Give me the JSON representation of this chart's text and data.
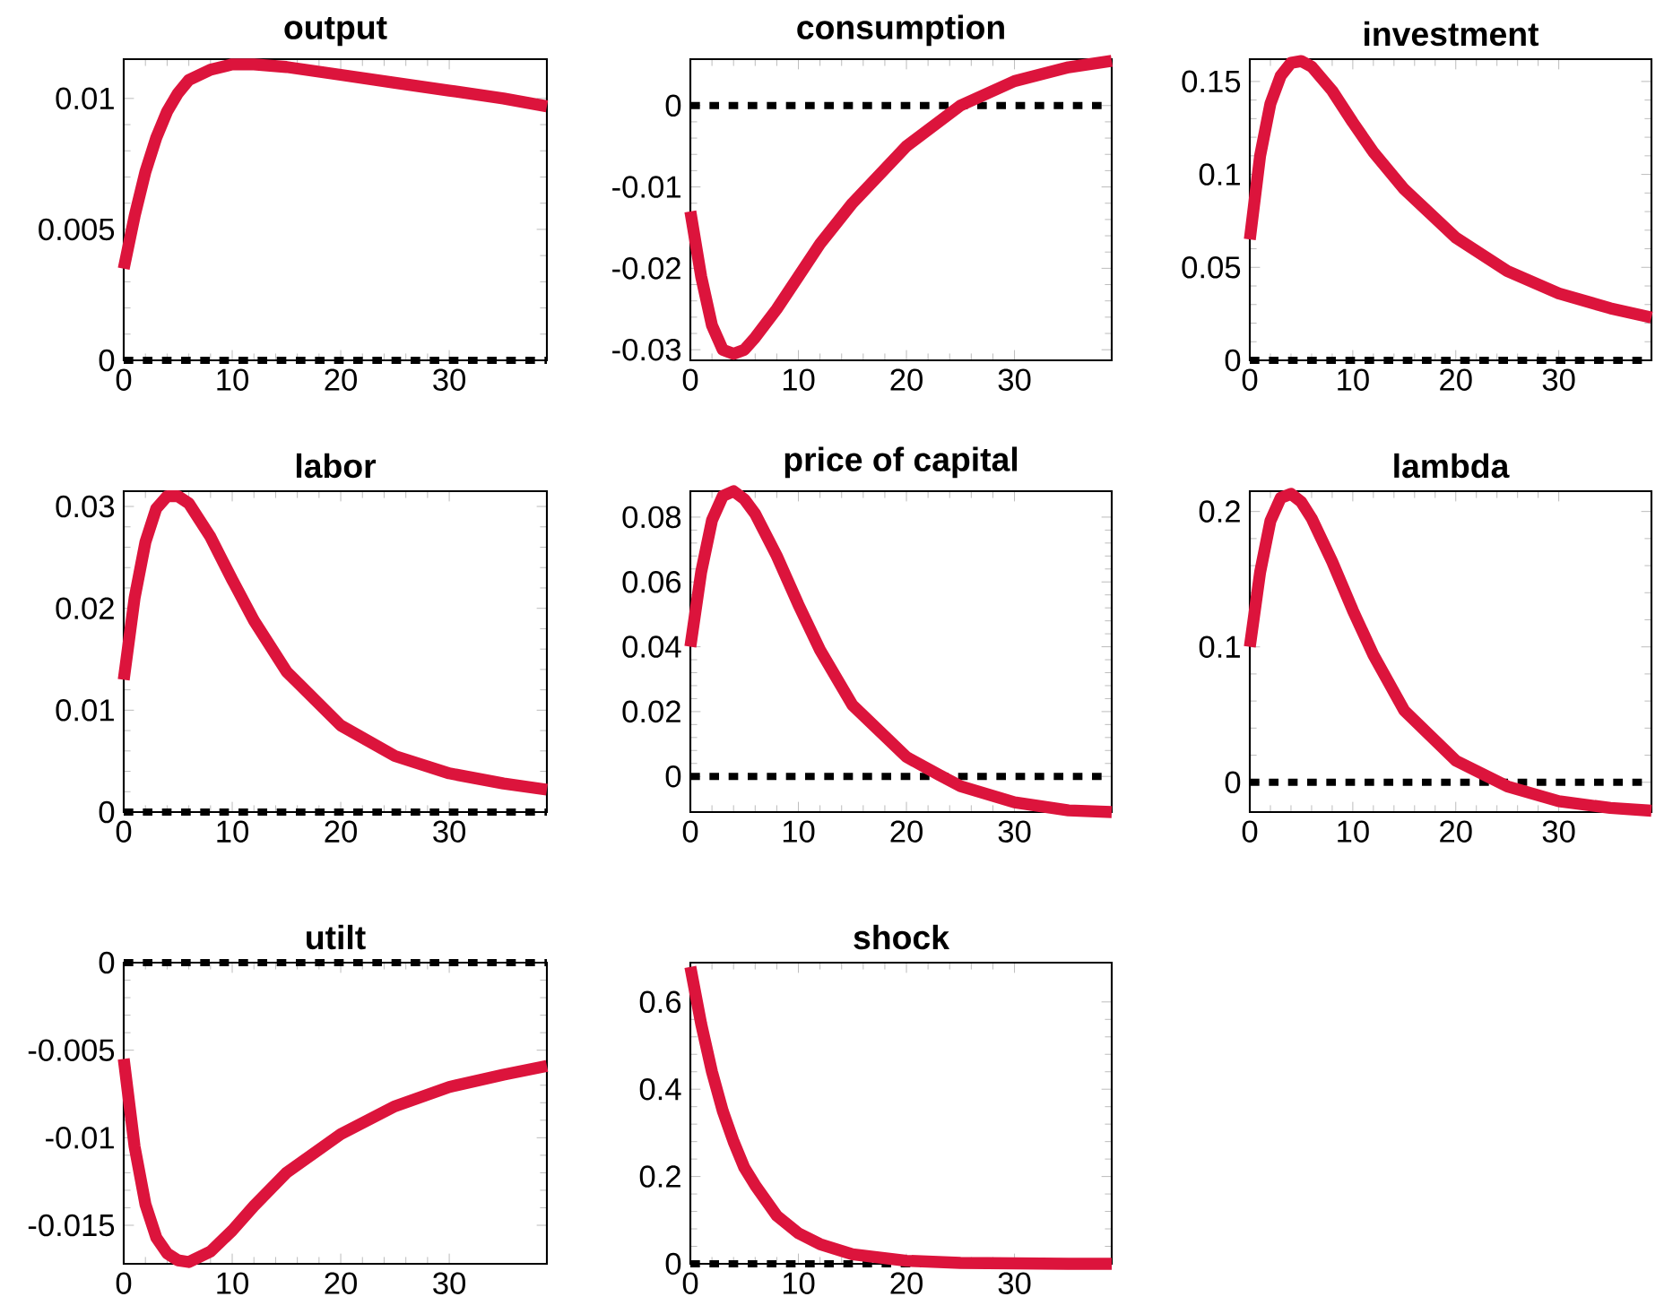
{
  "chart_data": [
    {
      "type": "line",
      "title": "output",
      "x": [
        0,
        1,
        2,
        3,
        4,
        5,
        6,
        8,
        10,
        12,
        15,
        20,
        25,
        30,
        35,
        39
      ],
      "values": [
        0.0035,
        0.0055,
        0.0072,
        0.0085,
        0.0095,
        0.0102,
        0.0107,
        0.0111,
        0.0113,
        0.0113,
        0.0112,
        0.0109,
        0.0106,
        0.0103,
        0.01,
        0.0097
      ],
      "color": "#dc143c",
      "line_style": "solid",
      "xlim": [
        0,
        39
      ],
      "xticks": [
        0,
        10,
        20,
        30
      ],
      "ylim": [
        0,
        0.0115
      ],
      "yticks": [
        0,
        0.005,
        0.01
      ],
      "ref_lines": [
        {
          "axis": "y",
          "value": 0,
          "color": "#000000",
          "line_style": "dotted"
        }
      ]
    },
    {
      "type": "line",
      "title": "consumption",
      "x": [
        0,
        1,
        2,
        3,
        4,
        5,
        6,
        8,
        10,
        12,
        15,
        20,
        25,
        30,
        35,
        39
      ],
      "values": [
        -0.013,
        -0.021,
        -0.027,
        -0.03,
        -0.0305,
        -0.03,
        -0.0285,
        -0.025,
        -0.021,
        -0.017,
        -0.012,
        -0.005,
        0.0,
        0.003,
        0.0047,
        0.0055
      ],
      "color": "#dc143c",
      "line_style": "solid",
      "xlim": [
        0,
        39
      ],
      "xticks": [
        0,
        10,
        20,
        30
      ],
      "ylim": [
        -0.0313,
        0.0057
      ],
      "yticks": [
        -0.03,
        -0.02,
        -0.01,
        0
      ],
      "ref_lines": [
        {
          "axis": "y",
          "value": 0,
          "color": "#000000",
          "line_style": "dotted"
        }
      ]
    },
    {
      "type": "line",
      "title": "investment",
      "x": [
        0,
        1,
        2,
        3,
        4,
        5,
        6,
        8,
        10,
        12,
        15,
        20,
        25,
        30,
        35,
        39
      ],
      "values": [
        0.065,
        0.11,
        0.138,
        0.153,
        0.16,
        0.161,
        0.158,
        0.145,
        0.128,
        0.112,
        0.092,
        0.066,
        0.048,
        0.036,
        0.028,
        0.023
      ],
      "color": "#dc143c",
      "line_style": "solid",
      "xlim": [
        0,
        39
      ],
      "xticks": [
        0,
        10,
        20,
        30
      ],
      "ylim": [
        0,
        0.162
      ],
      "yticks": [
        0,
        0.05,
        0.1,
        0.15
      ],
      "ref_lines": [
        {
          "axis": "y",
          "value": 0,
          "color": "#000000",
          "line_style": "dotted"
        }
      ]
    },
    {
      "type": "line",
      "title": "labor",
      "x": [
        0,
        1,
        2,
        3,
        4,
        5,
        6,
        8,
        10,
        12,
        15,
        20,
        25,
        30,
        35,
        39
      ],
      "values": [
        0.013,
        0.021,
        0.0265,
        0.0298,
        0.031,
        0.031,
        0.0303,
        0.027,
        0.0228,
        0.0188,
        0.0138,
        0.0085,
        0.0055,
        0.0038,
        0.0028,
        0.0022
      ],
      "color": "#dc143c",
      "line_style": "solid",
      "xlim": [
        0,
        39
      ],
      "xticks": [
        0,
        10,
        20,
        30
      ],
      "ylim": [
        0,
        0.0315
      ],
      "yticks": [
        0,
        0.01,
        0.02,
        0.03
      ],
      "ref_lines": [
        {
          "axis": "y",
          "value": 0,
          "color": "#000000",
          "line_style": "dotted"
        }
      ]
    },
    {
      "type": "line",
      "title": "price of capital",
      "x": [
        0,
        1,
        2,
        3,
        4,
        5,
        6,
        8,
        10,
        12,
        15,
        20,
        23,
        25,
        30,
        35,
        39
      ],
      "values": [
        0.04,
        0.063,
        0.079,
        0.0865,
        0.088,
        0.0855,
        0.081,
        0.068,
        0.053,
        0.039,
        0.022,
        0.006,
        0.0005,
        -0.003,
        -0.008,
        -0.0105,
        -0.011
      ],
      "color": "#dc143c",
      "line_style": "solid",
      "xlim": [
        0,
        39
      ],
      "xticks": [
        0,
        10,
        20,
        30
      ],
      "ylim": [
        -0.011,
        0.088
      ],
      "yticks": [
        0,
        0.02,
        0.04,
        0.06,
        0.08
      ],
      "ref_lines": [
        {
          "axis": "y",
          "value": 0,
          "color": "#000000",
          "line_style": "dotted"
        }
      ]
    },
    {
      "type": "line",
      "title": "lambda",
      "x": [
        0,
        1,
        2,
        3,
        4,
        5,
        6,
        8,
        10,
        12,
        15,
        20,
        25,
        30,
        35,
        39
      ],
      "values": [
        0.1,
        0.155,
        0.193,
        0.21,
        0.213,
        0.207,
        0.195,
        0.163,
        0.127,
        0.094,
        0.053,
        0.016,
        -0.003,
        -0.014,
        -0.019,
        -0.021
      ],
      "color": "#dc143c",
      "line_style": "solid",
      "xlim": [
        0,
        39
      ],
      "xticks": [
        0,
        10,
        20,
        30
      ],
      "ylim": [
        -0.022,
        0.215
      ],
      "yticks": [
        0,
        0.1,
        0.2
      ],
      "ref_lines": [
        {
          "axis": "y",
          "value": 0,
          "color": "#000000",
          "line_style": "dotted"
        }
      ]
    },
    {
      "type": "line",
      "title": "utilt",
      "x": [
        0,
        1,
        2,
        3,
        4,
        5,
        6,
        8,
        10,
        12,
        15,
        20,
        25,
        30,
        35,
        39
      ],
      "values": [
        -0.0055,
        -0.0105,
        -0.0138,
        -0.0157,
        -0.0166,
        -0.017,
        -0.0171,
        -0.0165,
        -0.0153,
        -0.0139,
        -0.012,
        -0.0098,
        -0.0082,
        -0.0071,
        -0.0064,
        -0.0059
      ],
      "color": "#dc143c",
      "line_style": "solid",
      "xlim": [
        0,
        39
      ],
      "xticks": [
        0,
        10,
        20,
        30
      ],
      "ylim": [
        -0.0172,
        0
      ],
      "yticks": [
        -0.015,
        -0.01,
        -0.005,
        0
      ],
      "ref_lines": [
        {
          "axis": "y",
          "value": 0,
          "color": "#000000",
          "line_style": "dotted"
        }
      ]
    },
    {
      "type": "line",
      "title": "shock",
      "x": [
        0,
        1,
        2,
        3,
        4,
        5,
        6,
        8,
        10,
        12,
        15,
        20,
        25,
        30,
        35,
        39
      ],
      "values": [
        0.68,
        0.55,
        0.44,
        0.35,
        0.28,
        0.22,
        0.18,
        0.11,
        0.07,
        0.045,
        0.022,
        0.007,
        0.002,
        0.001,
        0,
        0
      ],
      "color": "#dc143c",
      "line_style": "solid",
      "xlim": [
        0,
        39
      ],
      "xticks": [
        0,
        10,
        20,
        30
      ],
      "ylim": [
        0,
        0.69
      ],
      "yticks": [
        0,
        0.2,
        0.4,
        0.6
      ],
      "ref_lines": [
        {
          "axis": "y",
          "value": 0,
          "color": "#000000",
          "line_style": "dotted"
        }
      ]
    }
  ]
}
